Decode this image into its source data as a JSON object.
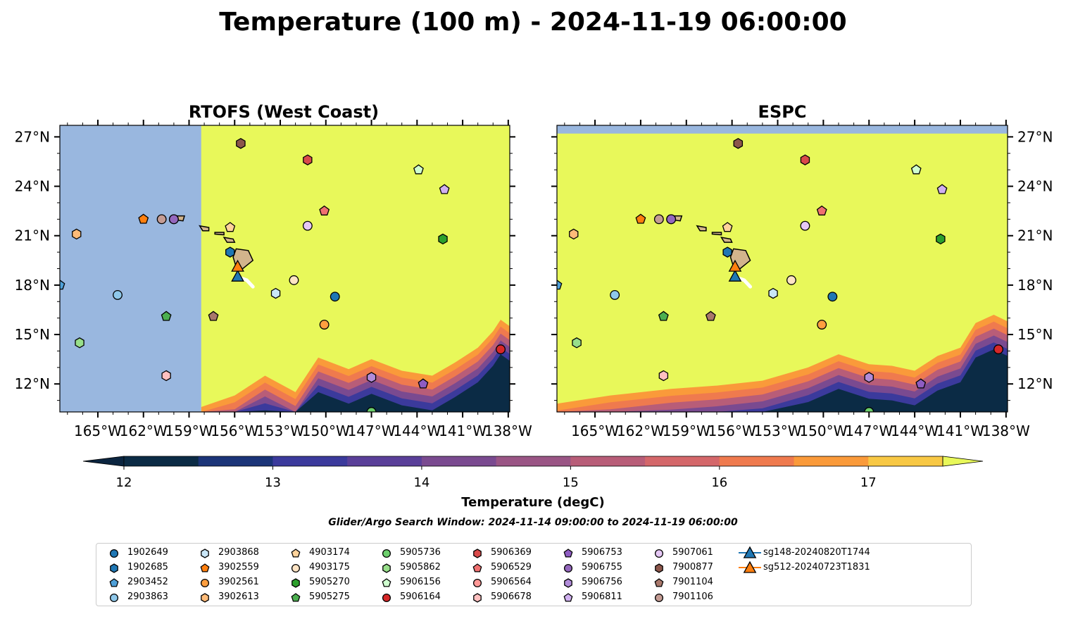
{
  "title": "Temperature (100 m) - 2024-11-19 06:00:00",
  "colorbar": {
    "label": "Temperature (degC)",
    "ticks": [
      "12",
      "13",
      "14",
      "15",
      "16",
      "17"
    ],
    "min": 12,
    "max": 17.5,
    "step": 0.5,
    "under": "#0b2540",
    "over": "#e8f85a",
    "colors": [
      "#0b2b45",
      "#1b3478",
      "#3b3a9c",
      "#5a3f99",
      "#7a4a90",
      "#9a5585",
      "#b85d78",
      "#d4676a",
      "#ef7a4e",
      "#fa9a3a",
      "#f8c844"
    ]
  },
  "search_window": "Glider/Argo Search Window: 2024-11-14 09:00:00 to 2024-11-19 06:00:00",
  "chart_data": [
    {
      "type": "map",
      "title": "RTOFS (West Coast)",
      "xlim": [
        -167.5,
        -137.9
      ],
      "ylim": [
        10.3,
        27.7
      ],
      "xticks": [
        -165,
        -162,
        -159,
        -156,
        -153,
        -150,
        -147,
        -144,
        -141,
        -138
      ],
      "xtick_labels": [
        "165°W",
        "162°W",
        "159°W",
        "156°W",
        "153°W",
        "150°W",
        "147°W",
        "144°W",
        "141°W",
        "138°W"
      ],
      "yticks": [
        12,
        15,
        18,
        21,
        24,
        27
      ],
      "ytick_labels": [
        "12°N",
        "15°N",
        "18°N",
        "21°N",
        "24°N",
        "27°N"
      ],
      "nodata_west_of": -158.2,
      "nodata_color": "#99b7df",
      "background_color": "#e8f85a",
      "cool_region": [
        [
          -158.2,
          10.3
        ],
        [
          -158.2,
          10.6
        ],
        [
          -156,
          11.3
        ],
        [
          -154,
          12.5
        ],
        [
          -152,
          11.5
        ],
        [
          -150.5,
          13.6
        ],
        [
          -148.5,
          12.9
        ],
        [
          -147,
          13.5
        ],
        [
          -145,
          12.8
        ],
        [
          -143,
          12.5
        ],
        [
          -141.5,
          13.3
        ],
        [
          -140,
          14.2
        ],
        [
          -139,
          15.2
        ],
        [
          -138.5,
          15.9
        ],
        [
          -137.9,
          15.5
        ],
        [
          -137.9,
          10.3
        ]
      ]
    },
    {
      "type": "map",
      "title": "ESPC",
      "xlim": [
        -167.5,
        -137.9
      ],
      "ylim": [
        10.3,
        27.7
      ],
      "xticks": [
        -165,
        -162,
        -159,
        -156,
        -153,
        -150,
        -147,
        -144,
        -141,
        -138
      ],
      "xtick_labels": [
        "165°W",
        "162°W",
        "159°W",
        "156°W",
        "153°W",
        "150°W",
        "147°W",
        "144°W",
        "141°W",
        "138°W"
      ],
      "yticks": [
        12,
        15,
        18,
        21,
        24,
        27
      ],
      "ytick_labels": [
        "12°N",
        "15°N",
        "18°N",
        "21°N",
        "24°N",
        "27°N"
      ],
      "nodata_north_of": 27.2,
      "nodata_color": "#99b7df",
      "background_color": "#e8f85a",
      "cool_region": [
        [
          -167.5,
          10.3
        ],
        [
          -167.5,
          10.8
        ],
        [
          -164,
          11.3
        ],
        [
          -160,
          11.7
        ],
        [
          -157,
          11.9
        ],
        [
          -154,
          12.2
        ],
        [
          -151,
          13
        ],
        [
          -149,
          13.8
        ],
        [
          -147,
          13.2
        ],
        [
          -145.5,
          13.1
        ],
        [
          -144,
          12.8
        ],
        [
          -142.5,
          13.7
        ],
        [
          -141,
          14.2
        ],
        [
          -140,
          15.7
        ],
        [
          -138.8,
          16.2
        ],
        [
          -137.9,
          15.8
        ],
        [
          -137.9,
          10.3
        ]
      ]
    }
  ],
  "islands": [
    {
      "name": "Hawaii",
      "pts": [
        [
          -155.9,
          20.2
        ],
        [
          -155.1,
          20.1
        ],
        [
          -154.8,
          19.5
        ],
        [
          -155.6,
          18.9
        ],
        [
          -155.9,
          19.1
        ],
        [
          -156.1,
          19.7
        ]
      ]
    },
    {
      "name": "Maui",
      "pts": [
        [
          -156.7,
          20.9
        ],
        [
          -156.1,
          20.8
        ],
        [
          -156,
          20.6
        ],
        [
          -156.5,
          20.6
        ]
      ]
    },
    {
      "name": "Molokai",
      "pts": [
        [
          -157.3,
          21.2
        ],
        [
          -156.7,
          21.2
        ],
        [
          -156.7,
          21.05
        ],
        [
          -157.3,
          21.1
        ]
      ]
    },
    {
      "name": "Oahu",
      "pts": [
        [
          -158.3,
          21.6
        ],
        [
          -157.7,
          21.5
        ],
        [
          -157.7,
          21.3
        ],
        [
          -158.1,
          21.3
        ]
      ]
    },
    {
      "name": "Kauai",
      "pts": [
        [
          -159.8,
          22.2
        ],
        [
          -159.3,
          22.2
        ],
        [
          -159.4,
          21.9
        ],
        [
          -159.8,
          21.95
        ]
      ]
    },
    {
      "name": "Niihau",
      "pts": [
        [
          -160.2,
          22.0
        ],
        [
          -160.05,
          21.95
        ],
        [
          -160.1,
          21.8
        ],
        [
          -160.25,
          21.85
        ]
      ]
    }
  ],
  "stations": [
    {
      "id": "1902649",
      "shape": "circle",
      "color": "#1f77b4",
      "lon": -149.4,
      "lat": 17.3
    },
    {
      "id": "1902685",
      "shape": "hexagon",
      "color": "#1f77b4",
      "lon": -156.3,
      "lat": 20.0
    },
    {
      "id": "2903452",
      "shape": "pentagon",
      "color": "#4fa0d8",
      "lon": -167.5,
      "lat": 18.0
    },
    {
      "id": "2903863",
      "shape": "circle",
      "color": "#8fc8ea",
      "lon": -163.7,
      "lat": 17.4
    },
    {
      "id": "2903868",
      "shape": "hexagon",
      "color": "#c9e6f7",
      "lon": -153.3,
      "lat": 17.5
    },
    {
      "id": "3902559",
      "shape": "pentagon",
      "color": "#ff7f0e",
      "lon": -162.0,
      "lat": 22.0
    },
    {
      "id": "3902561",
      "shape": "circle",
      "color": "#ff9f40",
      "lon": -150.1,
      "lat": 15.6
    },
    {
      "id": "3902613",
      "shape": "hexagon",
      "color": "#ffbb78",
      "lon": -166.4,
      "lat": 21.1
    },
    {
      "id": "4903174",
      "shape": "pentagon",
      "color": "#ffd39b",
      "lon": -156.3,
      "lat": 21.5
    },
    {
      "id": "4903175",
      "shape": "circle",
      "color": "#ffe4c4",
      "lon": -152.1,
      "lat": 18.3
    },
    {
      "id": "5905270",
      "shape": "hexagon",
      "color": "#2ca02c",
      "lon": -142.3,
      "lat": 20.8
    },
    {
      "id": "5905275",
      "shape": "pentagon",
      "color": "#4caf50",
      "lon": -160.5,
      "lat": 16.1
    },
    {
      "id": "5905736",
      "shape": "circle",
      "color": "#6ccf6c",
      "lon": -147.0,
      "lat": 10.3
    },
    {
      "id": "5905862",
      "shape": "hexagon",
      "color": "#98df8a",
      "lon": -166.2,
      "lat": 14.5
    },
    {
      "id": "5906156",
      "shape": "pentagon",
      "color": "#cfffcf",
      "lon": -143.9,
      "lat": 25.0
    },
    {
      "id": "5906164",
      "shape": "circle",
      "color": "#d62728",
      "lon": -138.5,
      "lat": 14.1
    },
    {
      "id": "5906369",
      "shape": "hexagon",
      "color": "#d94a4a",
      "lon": -151.2,
      "lat": 25.6
    },
    {
      "id": "5906529",
      "shape": "pentagon",
      "color": "#f07070",
      "lon": -150.1,
      "lat": 22.5
    },
    {
      "id": "5906564",
      "shape": "circle",
      "color": "#ff9896",
      "lon": -160.0,
      "lat": 22.0
    },
    {
      "id": "5906678",
      "shape": "hexagon",
      "color": "#ffc0c0",
      "lon": -160.5,
      "lat": 12.5
    },
    {
      "id": "5906753",
      "shape": "pentagon",
      "color": "#8e5cc2",
      "lon": -143.6,
      "lat": 12.0
    },
    {
      "id": "5906755",
      "shape": "circle",
      "color": "#9467bd",
      "lon": -160.0,
      "lat": 22.0
    },
    {
      "id": "5906756",
      "shape": "hexagon",
      "color": "#b18cd9",
      "lon": -147.0,
      "lat": 12.4
    },
    {
      "id": "5906811",
      "shape": "pentagon",
      "color": "#d0b0f0",
      "lon": -142.2,
      "lat": 23.8
    },
    {
      "id": "7900877",
      "shape": "hexagon",
      "color": "#8c564b",
      "lon": -155.6,
      "lat": 26.6
    },
    {
      "id": "7901104",
      "shape": "pentagon",
      "color": "#a9786b",
      "lon": -157.4,
      "lat": 16.1
    },
    {
      "id": "7901106",
      "shape": "circle",
      "color": "#c49c94",
      "lon": -160.8,
      "lat": 22.0
    },
    {
      "id": "5907061",
      "shape": "circle",
      "color": "#e6c8f5",
      "lon": -151.2,
      "lat": 21.6
    }
  ],
  "gliders": [
    {
      "id": "sg148-20240820T1744",
      "color": "#1f77b4",
      "lon": -155.8,
      "lat": 18.5,
      "track": [
        [
          -155.8,
          18.5
        ],
        [
          -155.2,
          18.3
        ],
        [
          -154.8,
          17.9
        ]
      ]
    },
    {
      "id": "sg512-20240723T1831",
      "color": "#ff7f0e",
      "lon": -155.8,
      "lat": 19.1,
      "track": []
    }
  ],
  "legend_order": [
    "1902649",
    "1902685",
    "2903452",
    "2903863",
    "2903868",
    "3902559",
    "3902561",
    "3902613",
    "4903174",
    "4903175",
    "5905270",
    "5905275",
    "5905736",
    "5905862",
    "5906156",
    "5906164",
    "5906369",
    "5906529",
    "5906564",
    "5906678",
    "5906753",
    "5906755",
    "5906756",
    "5906811",
    "5907061",
    "7900877",
    "7901104",
    "7901106",
    "sg148-20240820T1744",
    "sg512-20240723T1831"
  ]
}
